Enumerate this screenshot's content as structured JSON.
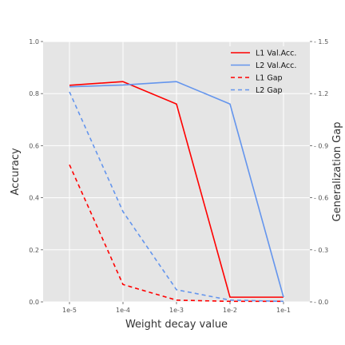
{
  "chart_data": {
    "type": "line",
    "title": "",
    "xlabel": "Weight decay value",
    "ylabel": "Accuracy",
    "y2label": "Generalization Gap",
    "categories": [
      "1e-5",
      "1e-4",
      "1e-3",
      "1e-2",
      "1e-1"
    ],
    "ylim": [
      0.0,
      1.0
    ],
    "y2lim": [
      0.0,
      1.5
    ],
    "yticks": [
      "0.0",
      "0.2",
      "0.4",
      "0.6",
      "0.8",
      "1.0"
    ],
    "y2ticks": [
      "0.0",
      "0.3",
      "0.6",
      "0.9",
      "1.2",
      "1.5"
    ],
    "grid": true,
    "legend_position": "top-right",
    "series": [
      {
        "name": "L1 Val.Acc.",
        "axis": "left",
        "style": "solid",
        "color": "#ff0000",
        "values": [
          0.832,
          0.846,
          0.76,
          0.018,
          0.018
        ]
      },
      {
        "name": "L2 Val.Acc.",
        "axis": "left",
        "style": "solid",
        "color": "#6495ed",
        "values": [
          0.826,
          0.833,
          0.846,
          0.76,
          0.018
        ]
      },
      {
        "name": "L1 Gap",
        "axis": "right",
        "style": "dashed",
        "color": "#ff0000",
        "values": [
          0.79,
          0.1,
          0.01,
          0.003,
          0.003
        ]
      },
      {
        "name": "L2 Gap",
        "axis": "right",
        "style": "dashed",
        "color": "#6495ed",
        "values": [
          1.21,
          0.52,
          0.07,
          0.01,
          0.003
        ]
      }
    ]
  }
}
